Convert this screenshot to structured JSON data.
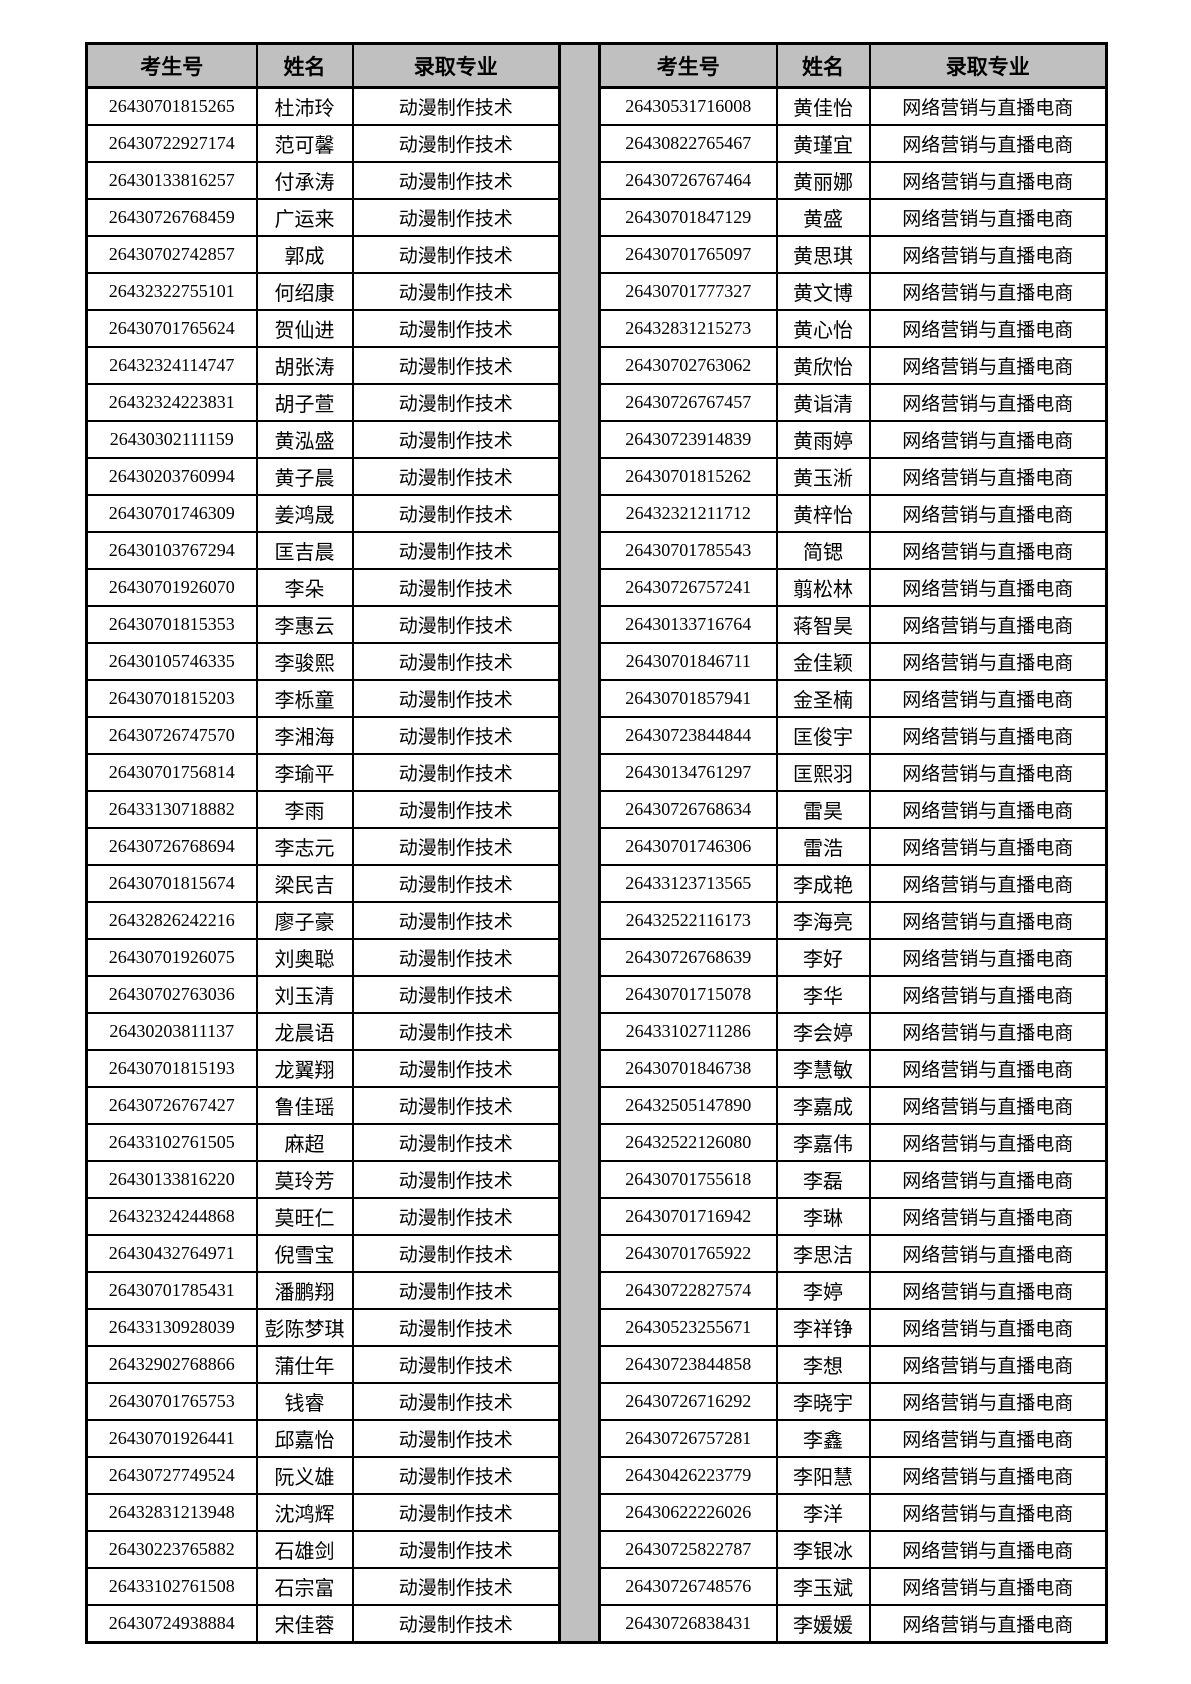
{
  "colors": {
    "header_bg": "#c0c0c0",
    "divider_bg": "#c0c0c0",
    "border": "#000000",
    "text": "#000000",
    "page_bg": "#ffffff"
  },
  "tables": [
    {
      "headers": [
        "考生号",
        "姓名",
        "录取专业"
      ],
      "major": "动漫制作技术",
      "rows": [
        [
          "26430701815265",
          "杜沛玲"
        ],
        [
          "26430722927174",
          "范可馨"
        ],
        [
          "26430133816257",
          "付承涛"
        ],
        [
          "26430726768459",
          "广运来"
        ],
        [
          "26430702742857",
          "郭成"
        ],
        [
          "26432322755101",
          "何绍康"
        ],
        [
          "26430701765624",
          "贺仙进"
        ],
        [
          "26432324114747",
          "胡张涛"
        ],
        [
          "26432324223831",
          "胡子萱"
        ],
        [
          "26430302111159",
          "黄泓盛"
        ],
        [
          "26430203760994",
          "黄子晨"
        ],
        [
          "26430701746309",
          "姜鸿晟"
        ],
        [
          "26430103767294",
          "匡吉晨"
        ],
        [
          "26430701926070",
          "李朵"
        ],
        [
          "26430701815353",
          "李惠云"
        ],
        [
          "26430105746335",
          "李骏熙"
        ],
        [
          "26430701815203",
          "李栎童"
        ],
        [
          "26430726747570",
          "李湘海"
        ],
        [
          "26430701756814",
          "李瑜平"
        ],
        [
          "26433130718882",
          "李雨"
        ],
        [
          "26430726768694",
          "李志元"
        ],
        [
          "26430701815674",
          "梁民吉"
        ],
        [
          "26432826242216",
          "廖子豪"
        ],
        [
          "26430701926075",
          "刘奥聪"
        ],
        [
          "26430702763036",
          "刘玉清"
        ],
        [
          "26430203811137",
          "龙晨语"
        ],
        [
          "26430701815193",
          "龙翼翔"
        ],
        [
          "26430726767427",
          "鲁佳瑶"
        ],
        [
          "26433102761505",
          "麻超"
        ],
        [
          "26430133816220",
          "莫玲芳"
        ],
        [
          "26432324244868",
          "莫旺仁"
        ],
        [
          "26430432764971",
          "倪雪宝"
        ],
        [
          "26430701785431",
          "潘鹏翔"
        ],
        [
          "26433130928039",
          "彭陈梦琪"
        ],
        [
          "26432902768866",
          "蒲仕年"
        ],
        [
          "26430701765753",
          "钱睿"
        ],
        [
          "26430701926441",
          "邱嘉怡"
        ],
        [
          "26430727749524",
          "阮义雄"
        ],
        [
          "26432831213948",
          "沈鸿辉"
        ],
        [
          "26430223765882",
          "石雄剑"
        ],
        [
          "26433102761508",
          "石宗富"
        ],
        [
          "26430724938884",
          "宋佳蓉"
        ]
      ]
    },
    {
      "headers": [
        "考生号",
        "姓名",
        "录取专业"
      ],
      "major": "网络营销与直播电商",
      "rows": [
        [
          "26430531716008",
          "黄佳怡"
        ],
        [
          "26430822765467",
          "黄瑾宜"
        ],
        [
          "26430726767464",
          "黄丽娜"
        ],
        [
          "26430701847129",
          "黄盛"
        ],
        [
          "26430701765097",
          "黄思琪"
        ],
        [
          "26430701777327",
          "黄文博"
        ],
        [
          "26432831215273",
          "黄心怡"
        ],
        [
          "26430702763062",
          "黄欣怡"
        ],
        [
          "26430726767457",
          "黄诣清"
        ],
        [
          "26430723914839",
          "黄雨婷"
        ],
        [
          "26430701815262",
          "黄玉淅"
        ],
        [
          "26432321211712",
          "黄梓怡"
        ],
        [
          "26430701785543",
          "简锶"
        ],
        [
          "26430726757241",
          "翦松林"
        ],
        [
          "26430133716764",
          "蒋智昊"
        ],
        [
          "26430701846711",
          "金佳颖"
        ],
        [
          "26430701857941",
          "金圣楠"
        ],
        [
          "26430723844844",
          "匡俊宇"
        ],
        [
          "26430134761297",
          "匡熙羽"
        ],
        [
          "26430726768634",
          "雷昊"
        ],
        [
          "26430701746306",
          "雷浩"
        ],
        [
          "26433123713565",
          "李成艳"
        ],
        [
          "26432522116173",
          "李海亮"
        ],
        [
          "26430726768639",
          "李好"
        ],
        [
          "26430701715078",
          "李华"
        ],
        [
          "26433102711286",
          "李会婷"
        ],
        [
          "26430701846738",
          "李慧敏"
        ],
        [
          "26432505147890",
          "李嘉成"
        ],
        [
          "26432522126080",
          "李嘉伟"
        ],
        [
          "26430701755618",
          "李磊"
        ],
        [
          "26430701716942",
          "李琳"
        ],
        [
          "26430701765922",
          "李思洁"
        ],
        [
          "26430722827574",
          "李婷"
        ],
        [
          "26430523255671",
          "李祥铮"
        ],
        [
          "26430723844858",
          "李想"
        ],
        [
          "26430726716292",
          "李晓宇"
        ],
        [
          "26430726757281",
          "李鑫"
        ],
        [
          "26430426223779",
          "李阳慧"
        ],
        [
          "26430622226026",
          "李洋"
        ],
        [
          "26430725822787",
          "李银冰"
        ],
        [
          "26430726748576",
          "李玉斌"
        ],
        [
          "26430726838431",
          "李媛媛"
        ]
      ]
    }
  ]
}
